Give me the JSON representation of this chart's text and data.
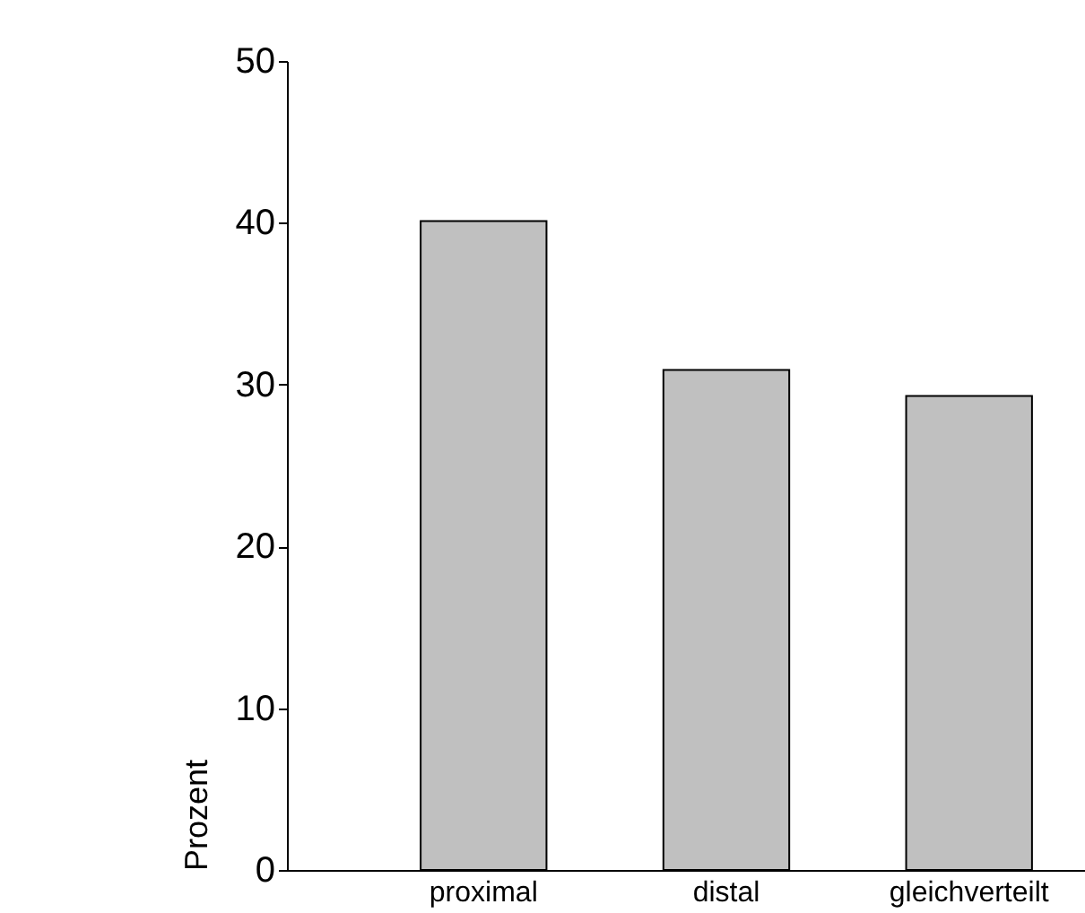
{
  "chart_data": {
    "type": "bar",
    "ylabel": "Prozent",
    "categories": [
      "proximal",
      "distal",
      "gleichverteilt"
    ],
    "values": [
      40.1,
      30.9,
      29.3
    ],
    "color": "#c0c0c0",
    "ylim": [
      0,
      50
    ],
    "yticks": [
      0,
      10,
      20,
      30,
      40,
      50
    ],
    "grid": false
  }
}
